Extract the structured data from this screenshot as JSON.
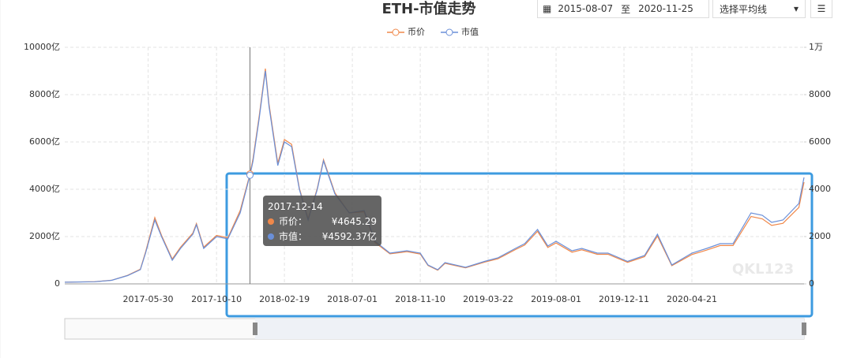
{
  "header": {
    "title": "ETH-市值走势",
    "date_from": "2015-08-07",
    "date_sep": "至",
    "date_to": "2020-11-25",
    "ma_select": "选择平均线"
  },
  "watermark": "QKL123",
  "chart_data": {
    "type": "line",
    "x": [
      "2016-12-19",
      "2017-02-15",
      "2017-03-20",
      "2017-04-20",
      "2017-05-15",
      "2017-05-25",
      "2017-06-12",
      "2017-06-25",
      "2017-07-16",
      "2017-08-01",
      "2017-08-25",
      "2017-09-01",
      "2017-09-15",
      "2017-10-10",
      "2017-11-01",
      "2017-11-25",
      "2017-12-14",
      "2017-12-20",
      "2018-01-01",
      "2018-01-13",
      "2018-01-20",
      "2018-02-06",
      "2018-02-19",
      "2018-03-05",
      "2018-03-20",
      "2018-04-06",
      "2018-04-24",
      "2018-05-06",
      "2018-05-28",
      "2018-06-25",
      "2018-07-24",
      "2018-08-14",
      "2018-09-12",
      "2018-10-15",
      "2018-11-10",
      "2018-11-25",
      "2018-12-14",
      "2018-12-28",
      "2019-02-06",
      "2019-03-15",
      "2019-04-10",
      "2019-05-14",
      "2019-06-01",
      "2019-06-26",
      "2019-07-16",
      "2019-08-01",
      "2019-09-01",
      "2019-09-20",
      "2019-10-20",
      "2019-11-10",
      "2019-12-18",
      "2020-01-20",
      "2020-02-14",
      "2020-03-13",
      "2020-04-21",
      "2020-05-20",
      "2020-06-15",
      "2020-07-10",
      "2020-08-14",
      "2020-09-05",
      "2020-09-23",
      "2020-10-15",
      "2020-11-15",
      "2020-11-25"
    ],
    "series": [
      {
        "name": "币价",
        "color": "#f0884a",
        "axis": "y2",
        "values": [
          72,
          92,
          155,
          360,
          620,
          1350,
          2800,
          2050,
          1050,
          1550,
          2150,
          2550,
          1550,
          2050,
          1950,
          3100,
          4645.29,
          5300,
          7100,
          9100,
          7600,
          5100,
          6100,
          5900,
          4050,
          2750,
          4050,
          5250,
          3850,
          3000,
          3050,
          1750,
          1270,
          1360,
          1260,
          780,
          580,
          870,
          680,
          920,
          1060,
          1450,
          1640,
          2220,
          1540,
          1730,
          1340,
          1440,
          1250,
          1250,
          910,
          1150,
          2020,
          770,
          1240,
          1430,
          1620,
          1620,
          2850,
          2750,
          2470,
          2560,
          3230,
          4300
        ]
      },
      {
        "name": "市值",
        "color": "#6a8fd8",
        "values": [
          70,
          90,
          150,
          350,
          600,
          1300,
          2700,
          2000,
          1000,
          1500,
          2100,
          2500,
          1500,
          2000,
          1900,
          3000,
          4592.37,
          5200,
          7000,
          9000,
          7500,
          5000,
          6000,
          5800,
          4000,
          2700,
          4000,
          5200,
          3800,
          3000,
          3100,
          1800,
          1300,
          1400,
          1300,
          800,
          600,
          900,
          700,
          950,
          1100,
          1500,
          1700,
          2300,
          1600,
          1800,
          1400,
          1500,
          1300,
          1300,
          950,
          1200,
          2100,
          800,
          1300,
          1500,
          1700,
          1700,
          3000,
          2900,
          2600,
          2700,
          3400,
          4500
        ]
      }
    ],
    "xlim": [
      "2016-12-19",
      "2020-11-25"
    ],
    "xticks": [
      "2017-05-30",
      "2017-10-10",
      "2018-02-19",
      "2018-07-01",
      "2018-11-10",
      "2019-03-22",
      "2019-08-01",
      "2019-12-11",
      "2020-04-21"
    ],
    "ylim": [
      0,
      10000
    ],
    "yticks": [
      0,
      {
        "value": 2000,
        "label": "2000亿"
      },
      {
        "value": 4000,
        "label": "4000亿"
      },
      {
        "value": 6000,
        "label": "6000亿"
      },
      {
        "value": 8000,
        "label": "8000亿"
      },
      {
        "value": 10000,
        "label": "10000亿"
      }
    ],
    "y2lim": [
      0,
      10000
    ],
    "y2ticks": [
      0,
      2000,
      4000,
      6000,
      8000,
      {
        "value": 10000,
        "label": "1万"
      }
    ],
    "grid": true,
    "legend": "top",
    "tooltip": {
      "x": "2017-12-14",
      "items": [
        {
          "label": "币价：",
          "value": 4645.29,
          "value_label": "¥4645.29"
        },
        {
          "label": "市值：",
          "value": 4592.37,
          "value_label": "¥4592.37亿"
        }
      ]
    }
  }
}
